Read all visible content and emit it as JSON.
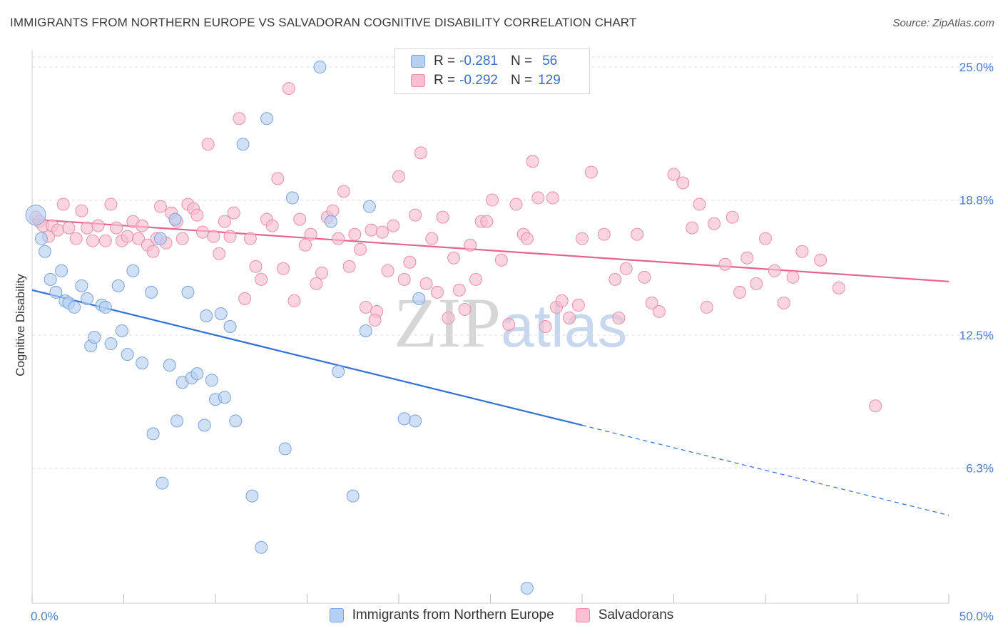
{
  "header": {
    "title": "IMMIGRANTS FROM NORTHERN EUROPE VS SALVADORAN COGNITIVE DISABILITY CORRELATION CHART",
    "source": "Source: ZipAtlas.com"
  },
  "watermark": {
    "part1": "ZIP",
    "part2": "atlas"
  },
  "legend": {
    "rows": [
      {
        "r_label": "R =",
        "r_value": "-0.281",
        "n_label": "N =",
        "n_value": "56"
      },
      {
        "r_label": "R =",
        "r_value": "-0.292",
        "n_label": "N =",
        "n_value": "129"
      }
    ]
  },
  "bottom_legend": {
    "items": [
      "Immigrants from Northern Europe",
      "Salvadorans"
    ]
  },
  "colors": {
    "blue_fill": "#b6d0f3",
    "blue_stroke": "#7aa3db",
    "blue_line": "#2f72d4",
    "pink_fill": "#f7bfd0",
    "pink_stroke": "#e98fac",
    "pink_line": "#e5648f",
    "grid": "#dddddd",
    "tick_label": "#4a7cc9"
  },
  "chart_data": {
    "type": "scatter",
    "title": "IMMIGRANTS FROM NORTHERN EUROPE VS SALVADORAN COGNITIVE DISABILITY CORRELATION CHART",
    "xlabel": "",
    "ylabel": "Cognitive Disability",
    "xlim": [
      0,
      50
    ],
    "ylim": [
      0,
      25.8
    ],
    "x_ticks": [
      "0.0%",
      "50.0%"
    ],
    "y_ticks": [
      {
        "value": 6.3,
        "label": "6.3%"
      },
      {
        "value": 12.5,
        "label": "12.5%"
      },
      {
        "value": 18.8,
        "label": "18.8%"
      },
      {
        "value": 25.0,
        "label": "25.0%"
      }
    ],
    "grid": true,
    "legend_position": "top-center",
    "series": [
      {
        "name": "Immigrants from Northern Europe",
        "R": -0.281,
        "N": 56,
        "trend": {
          "x": [
            0,
            30
          ],
          "y": [
            14.6,
            8.3
          ],
          "dashed_to": {
            "x": 50,
            "y": 4.1
          }
        },
        "points": [
          [
            0.2,
            18.1
          ],
          [
            0.5,
            17.0
          ],
          [
            0.7,
            16.4
          ],
          [
            1.0,
            15.1
          ],
          [
            1.3,
            14.5
          ],
          [
            1.6,
            15.5
          ],
          [
            1.8,
            14.1
          ],
          [
            2.0,
            14.0
          ],
          [
            2.3,
            13.8
          ],
          [
            2.7,
            14.8
          ],
          [
            3.0,
            14.2
          ],
          [
            3.2,
            12.0
          ],
          [
            3.4,
            12.4
          ],
          [
            3.8,
            13.9
          ],
          [
            4.0,
            13.8
          ],
          [
            4.3,
            12.1
          ],
          [
            4.7,
            14.8
          ],
          [
            4.9,
            12.7
          ],
          [
            5.2,
            11.6
          ],
          [
            5.5,
            15.5
          ],
          [
            6.0,
            11.2
          ],
          [
            6.5,
            14.5
          ],
          [
            6.6,
            7.9
          ],
          [
            7.0,
            17.0
          ],
          [
            7.1,
            5.6
          ],
          [
            7.5,
            11.1
          ],
          [
            7.8,
            17.9
          ],
          [
            7.9,
            8.5
          ],
          [
            8.2,
            10.3
          ],
          [
            8.5,
            14.5
          ],
          [
            8.7,
            10.5
          ],
          [
            9.0,
            10.7
          ],
          [
            9.4,
            8.3
          ],
          [
            9.5,
            13.4
          ],
          [
            9.8,
            10.4
          ],
          [
            10.0,
            9.5
          ],
          [
            10.3,
            13.5
          ],
          [
            10.5,
            9.6
          ],
          [
            10.8,
            12.9
          ],
          [
            11.1,
            8.5
          ],
          [
            11.5,
            21.4
          ],
          [
            12.0,
            5.0
          ],
          [
            12.5,
            2.6
          ],
          [
            12.8,
            22.6
          ],
          [
            13.8,
            7.2
          ],
          [
            14.2,
            18.9
          ],
          [
            15.7,
            25.0
          ],
          [
            16.3,
            17.8
          ],
          [
            16.7,
            10.8
          ],
          [
            17.5,
            5.0
          ],
          [
            18.2,
            12.7
          ],
          [
            18.4,
            18.5
          ],
          [
            20.3,
            8.6
          ],
          [
            20.9,
            8.5
          ],
          [
            21.1,
            14.2
          ],
          [
            27.0,
            0.7
          ]
        ]
      },
      {
        "name": "Salvadorans",
        "R": -0.292,
        "N": 129,
        "trend": {
          "x": [
            0,
            50
          ],
          "y": [
            17.9,
            15.0
          ]
        },
        "points": [
          [
            0.2,
            18.0
          ],
          [
            0.4,
            17.8
          ],
          [
            0.6,
            17.6
          ],
          [
            0.9,
            17.1
          ],
          [
            1.1,
            17.6
          ],
          [
            1.4,
            17.4
          ],
          [
            1.7,
            18.6
          ],
          [
            2.0,
            17.5
          ],
          [
            2.4,
            17.0
          ],
          [
            2.7,
            18.3
          ],
          [
            3.0,
            17.5
          ],
          [
            3.3,
            16.9
          ],
          [
            3.6,
            17.6
          ],
          [
            4.0,
            16.9
          ],
          [
            4.3,
            18.6
          ],
          [
            4.6,
            17.5
          ],
          [
            4.9,
            16.9
          ],
          [
            5.2,
            17.1
          ],
          [
            5.5,
            17.8
          ],
          [
            5.8,
            17.0
          ],
          [
            6.0,
            17.6
          ],
          [
            6.3,
            16.7
          ],
          [
            6.6,
            16.4
          ],
          [
            6.8,
            17.0
          ],
          [
            7.0,
            18.5
          ],
          [
            7.3,
            16.8
          ],
          [
            7.6,
            18.2
          ],
          [
            7.9,
            17.8
          ],
          [
            8.2,
            17.0
          ],
          [
            8.5,
            18.6
          ],
          [
            8.8,
            18.4
          ],
          [
            9.0,
            18.1
          ],
          [
            9.3,
            17.3
          ],
          [
            9.6,
            21.4
          ],
          [
            9.9,
            17.1
          ],
          [
            10.2,
            16.3
          ],
          [
            10.5,
            17.8
          ],
          [
            10.8,
            17.1
          ],
          [
            11.0,
            18.2
          ],
          [
            11.3,
            22.6
          ],
          [
            11.6,
            14.2
          ],
          [
            11.9,
            17.0
          ],
          [
            12.2,
            15.7
          ],
          [
            12.5,
            15.1
          ],
          [
            12.8,
            17.9
          ],
          [
            13.1,
            17.6
          ],
          [
            13.4,
            19.8
          ],
          [
            13.7,
            15.6
          ],
          [
            14.0,
            24.0
          ],
          [
            14.3,
            14.1
          ],
          [
            14.6,
            17.9
          ],
          [
            14.9,
            16.7
          ],
          [
            15.2,
            17.2
          ],
          [
            15.5,
            14.9
          ],
          [
            15.8,
            15.4
          ],
          [
            16.1,
            18.0
          ],
          [
            16.4,
            18.3
          ],
          [
            16.7,
            17.0
          ],
          [
            17.0,
            19.2
          ],
          [
            17.3,
            15.7
          ],
          [
            17.6,
            17.2
          ],
          [
            17.9,
            16.5
          ],
          [
            18.2,
            13.8
          ],
          [
            18.5,
            17.4
          ],
          [
            18.8,
            13.6
          ],
          [
            19.1,
            17.3
          ],
          [
            19.4,
            15.5
          ],
          [
            19.7,
            17.6
          ],
          [
            20.0,
            19.9
          ],
          [
            20.3,
            15.1
          ],
          [
            20.6,
            15.9
          ],
          [
            20.9,
            18.1
          ],
          [
            21.2,
            21.0
          ],
          [
            21.5,
            14.9
          ],
          [
            21.8,
            17.0
          ],
          [
            22.1,
            14.5
          ],
          [
            22.4,
            18.0
          ],
          [
            22.7,
            13.3
          ],
          [
            23.0,
            16.1
          ],
          [
            23.3,
            14.6
          ],
          [
            23.6,
            13.7
          ],
          [
            23.9,
            16.7
          ],
          [
            24.2,
            15.1
          ],
          [
            24.5,
            17.8
          ],
          [
            24.8,
            17.8
          ],
          [
            25.1,
            18.8
          ],
          [
            25.6,
            16.0
          ],
          [
            26.0,
            13.0
          ],
          [
            26.4,
            18.6
          ],
          [
            26.8,
            17.2
          ],
          [
            27.0,
            17.0
          ],
          [
            27.3,
            20.6
          ],
          [
            27.6,
            18.9
          ],
          [
            28.0,
            12.9
          ],
          [
            28.4,
            18.9
          ],
          [
            28.6,
            13.8
          ],
          [
            28.9,
            14.1
          ],
          [
            29.3,
            13.3
          ],
          [
            29.8,
            13.9
          ],
          [
            30.0,
            17.0
          ],
          [
            30.5,
            20.1
          ],
          [
            31.2,
            17.2
          ],
          [
            31.8,
            15.1
          ],
          [
            32.0,
            13.3
          ],
          [
            32.4,
            15.6
          ],
          [
            33.0,
            17.2
          ],
          [
            33.4,
            15.2
          ],
          [
            33.8,
            14.0
          ],
          [
            34.2,
            13.6
          ],
          [
            35.0,
            20.0
          ],
          [
            35.5,
            19.6
          ],
          [
            36.0,
            17.5
          ],
          [
            36.4,
            18.6
          ],
          [
            36.8,
            13.8
          ],
          [
            37.2,
            17.7
          ],
          [
            37.8,
            15.8
          ],
          [
            38.2,
            18.0
          ],
          [
            38.6,
            14.5
          ],
          [
            39.0,
            16.1
          ],
          [
            39.5,
            14.9
          ],
          [
            40.0,
            17.0
          ],
          [
            40.5,
            15.5
          ],
          [
            41.0,
            14.0
          ],
          [
            41.5,
            15.2
          ],
          [
            42.0,
            16.4
          ],
          [
            43.0,
            16.0
          ],
          [
            44.0,
            14.7
          ],
          [
            46.0,
            9.2
          ],
          [
            18.7,
            13.2
          ]
        ]
      }
    ]
  }
}
